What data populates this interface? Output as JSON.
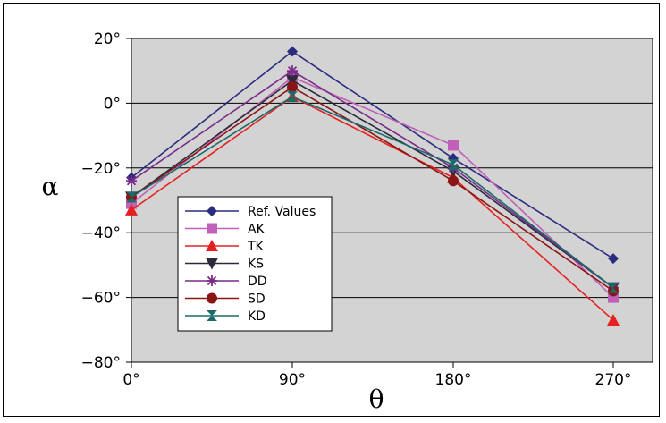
{
  "chart_data": {
    "type": "line",
    "title": "",
    "xlabel": "θ",
    "ylabel": "α",
    "categories": [
      "0°",
      "90°",
      "180°",
      "270°"
    ],
    "yticks": [
      {
        "value": 20,
        "label": "20°"
      },
      {
        "value": 0,
        "label": "0°"
      },
      {
        "value": -20,
        "label": "−20°"
      },
      {
        "value": -40,
        "label": "−40°"
      },
      {
        "value": -60,
        "label": "−60°"
      },
      {
        "value": -80,
        "label": "−80°"
      }
    ],
    "ylim": [
      -80,
      20
    ],
    "grid": "horizontal",
    "background": "#d3d3d3",
    "legend_position": "lower-left",
    "series": [
      {
        "name": "Ref. Values",
        "color": "#2b2b7f",
        "marker": "diamond",
        "values": [
          -23,
          16,
          -17,
          -48
        ]
      },
      {
        "name": "AK",
        "color": "#c060b8",
        "marker": "square",
        "values": [
          -31,
          8,
          -13,
          -60
        ]
      },
      {
        "name": "TK",
        "color": "#e62020",
        "marker": "triangle-up",
        "values": [
          -33,
          2,
          -23,
          -67
        ]
      },
      {
        "name": "KS",
        "color": "#2a2a3a",
        "marker": "triangle-down",
        "values": [
          -29,
          7,
          -21,
          -57
        ]
      },
      {
        "name": "DD",
        "color": "#7a2a8a",
        "marker": "asterisk",
        "values": [
          -24,
          10,
          -20,
          -57
        ]
      },
      {
        "name": "SD",
        "color": "#8a1515",
        "marker": "circle",
        "values": [
          -29,
          5,
          -24,
          -58
        ]
      },
      {
        "name": "KD",
        "color": "#1a6a6a",
        "marker": "hourglass",
        "values": [
          -29,
          2,
          -19,
          -57
        ]
      }
    ]
  }
}
